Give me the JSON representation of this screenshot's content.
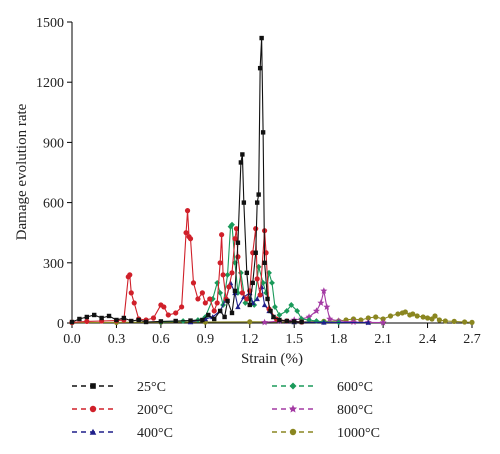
{
  "chart_data": {
    "type": "line",
    "title": "",
    "xlabel": "Strain (%)",
    "ylabel": "Damage evolution rate",
    "xlim": [
      0,
      2.7
    ],
    "ylim": [
      0,
      1500
    ],
    "xticks": [
      "0.0",
      "0.3",
      "0.6",
      "0.9",
      "1.2",
      "1.5",
      "1.8",
      "2.1",
      "2.4",
      "2.7"
    ],
    "yticks": [
      "0",
      "300",
      "600",
      "900",
      "1200",
      "1500"
    ],
    "grid": false,
    "legend_position": "bottom",
    "series": [
      {
        "name": "25°C",
        "color": "#111111",
        "marker": "square",
        "points": [
          [
            0.0,
            5
          ],
          [
            0.05,
            20
          ],
          [
            0.1,
            30
          ],
          [
            0.15,
            40
          ],
          [
            0.2,
            25
          ],
          [
            0.25,
            35
          ],
          [
            0.3,
            15
          ],
          [
            0.35,
            25
          ],
          [
            0.4,
            10
          ],
          [
            0.45,
            15
          ],
          [
            0.5,
            5
          ],
          [
            0.6,
            8
          ],
          [
            0.7,
            10
          ],
          [
            0.8,
            12
          ],
          [
            0.88,
            15
          ],
          [
            0.92,
            40
          ],
          [
            0.96,
            20
          ],
          [
            1.0,
            60
          ],
          [
            1.03,
            30
          ],
          [
            1.05,
            110
          ],
          [
            1.08,
            50
          ],
          [
            1.1,
            160
          ],
          [
            1.12,
            400
          ],
          [
            1.14,
            800
          ],
          [
            1.15,
            840
          ],
          [
            1.16,
            600
          ],
          [
            1.18,
            250
          ],
          [
            1.2,
            90
          ],
          [
            1.22,
            200
          ],
          [
            1.24,
            350
          ],
          [
            1.25,
            600
          ],
          [
            1.26,
            640
          ],
          [
            1.27,
            1270
          ],
          [
            1.28,
            1420
          ],
          [
            1.29,
            950
          ],
          [
            1.3,
            300
          ],
          [
            1.32,
            120
          ],
          [
            1.34,
            60
          ],
          [
            1.36,
            30
          ],
          [
            1.4,
            15
          ],
          [
            1.45,
            10
          ],
          [
            1.5,
            8
          ],
          [
            1.55,
            5
          ]
        ]
      },
      {
        "name": "200°C",
        "color": "#d0202a",
        "marker": "circle",
        "points": [
          [
            0.0,
            3
          ],
          [
            0.1,
            8
          ],
          [
            0.2,
            10
          ],
          [
            0.3,
            12
          ],
          [
            0.35,
            15
          ],
          [
            0.38,
            230
          ],
          [
            0.39,
            240
          ],
          [
            0.4,
            150
          ],
          [
            0.42,
            100
          ],
          [
            0.45,
            20
          ],
          [
            0.5,
            15
          ],
          [
            0.55,
            25
          ],
          [
            0.6,
            90
          ],
          [
            0.62,
            80
          ],
          [
            0.65,
            40
          ],
          [
            0.7,
            50
          ],
          [
            0.74,
            80
          ],
          [
            0.77,
            450
          ],
          [
            0.78,
            560
          ],
          [
            0.79,
            430
          ],
          [
            0.8,
            420
          ],
          [
            0.82,
            200
          ],
          [
            0.85,
            120
          ],
          [
            0.88,
            150
          ],
          [
            0.9,
            100
          ],
          [
            0.93,
            120
          ],
          [
            0.96,
            60
          ],
          [
            0.98,
            100
          ],
          [
            1.0,
            300
          ],
          [
            1.01,
            440
          ],
          [
            1.02,
            240
          ],
          [
            1.04,
            120
          ],
          [
            1.06,
            180
          ],
          [
            1.08,
            250
          ],
          [
            1.1,
            420
          ],
          [
            1.11,
            470
          ],
          [
            1.12,
            330
          ],
          [
            1.15,
            150
          ],
          [
            1.18,
            120
          ],
          [
            1.2,
            160
          ],
          [
            1.22,
            350
          ],
          [
            1.24,
            470
          ],
          [
            1.25,
            220
          ],
          [
            1.27,
            140
          ],
          [
            1.3,
            460
          ],
          [
            1.31,
            350
          ],
          [
            1.33,
            70
          ],
          [
            1.38,
            20
          ],
          [
            1.45,
            10
          ],
          [
            1.55,
            5
          ]
        ]
      },
      {
        "name": "400°C",
        "color": "#1f1f8a",
        "marker": "triangle",
        "points": [
          [
            0.8,
            5
          ],
          [
            0.9,
            20
          ],
          [
            0.95,
            30
          ],
          [
            1.0,
            60
          ],
          [
            1.04,
            120
          ],
          [
            1.07,
            200
          ],
          [
            1.1,
            150
          ],
          [
            1.12,
            80
          ],
          [
            1.16,
            130
          ],
          [
            1.2,
            150
          ],
          [
            1.22,
            100
          ],
          [
            1.25,
            120
          ],
          [
            1.28,
            180
          ],
          [
            1.3,
            90
          ],
          [
            1.33,
            60
          ],
          [
            1.36,
            30
          ],
          [
            1.4,
            15
          ],
          [
            1.45,
            8
          ],
          [
            1.5,
            5
          ],
          [
            1.7,
            3
          ],
          [
            2.0,
            2
          ]
        ]
      },
      {
        "name": "600°C",
        "color": "#1a9a5a",
        "marker": "diamond",
        "points": [
          [
            0.6,
            5
          ],
          [
            0.75,
            10
          ],
          [
            0.85,
            15
          ],
          [
            0.9,
            30
          ],
          [
            0.95,
            120
          ],
          [
            0.98,
            200
          ],
          [
            1.0,
            150
          ],
          [
            1.02,
            90
          ],
          [
            1.05,
            240
          ],
          [
            1.07,
            480
          ],
          [
            1.08,
            490
          ],
          [
            1.1,
            300
          ],
          [
            1.12,
            150
          ],
          [
            1.14,
            250
          ],
          [
            1.17,
            100
          ],
          [
            1.2,
            120
          ],
          [
            1.23,
            90
          ],
          [
            1.26,
            280
          ],
          [
            1.29,
            200
          ],
          [
            1.31,
            150
          ],
          [
            1.33,
            250
          ],
          [
            1.35,
            200
          ],
          [
            1.37,
            80
          ],
          [
            1.4,
            40
          ],
          [
            1.45,
            60
          ],
          [
            1.48,
            90
          ],
          [
            1.52,
            60
          ],
          [
            1.55,
            20
          ],
          [
            1.6,
            15
          ],
          [
            1.65,
            10
          ],
          [
            1.7,
            5
          ],
          [
            1.8,
            3
          ]
        ]
      },
      {
        "name": "800°C",
        "color": "#a43aa4",
        "marker": "star",
        "points": [
          [
            1.3,
            3
          ],
          [
            1.4,
            10
          ],
          [
            1.5,
            15
          ],
          [
            1.55,
            20
          ],
          [
            1.6,
            30
          ],
          [
            1.65,
            60
          ],
          [
            1.68,
            100
          ],
          [
            1.7,
            160
          ],
          [
            1.72,
            80
          ],
          [
            1.74,
            20
          ],
          [
            1.8,
            10
          ],
          [
            1.9,
            5
          ],
          [
            2.0,
            3
          ],
          [
            2.1,
            2
          ]
        ]
      },
      {
        "name": "1000°C",
        "color": "#8a8620",
        "marker": "circle",
        "points": [
          [
            0.0,
            2
          ],
          [
            0.3,
            3
          ],
          [
            0.6,
            4
          ],
          [
            0.9,
            5
          ],
          [
            1.2,
            6
          ],
          [
            1.5,
            5
          ],
          [
            1.7,
            8
          ],
          [
            1.8,
            10
          ],
          [
            1.85,
            15
          ],
          [
            1.9,
            20
          ],
          [
            1.95,
            15
          ],
          [
            2.0,
            25
          ],
          [
            2.05,
            30
          ],
          [
            2.1,
            20
          ],
          [
            2.15,
            35
          ],
          [
            2.2,
            45
          ],
          [
            2.23,
            50
          ],
          [
            2.25,
            55
          ],
          [
            2.28,
            40
          ],
          [
            2.3,
            45
          ],
          [
            2.33,
            35
          ],
          [
            2.37,
            30
          ],
          [
            2.4,
            25
          ],
          [
            2.43,
            20
          ],
          [
            2.45,
            35
          ],
          [
            2.48,
            15
          ],
          [
            2.52,
            10
          ],
          [
            2.58,
            8
          ],
          [
            2.65,
            5
          ],
          [
            2.7,
            3
          ]
        ]
      }
    ]
  }
}
